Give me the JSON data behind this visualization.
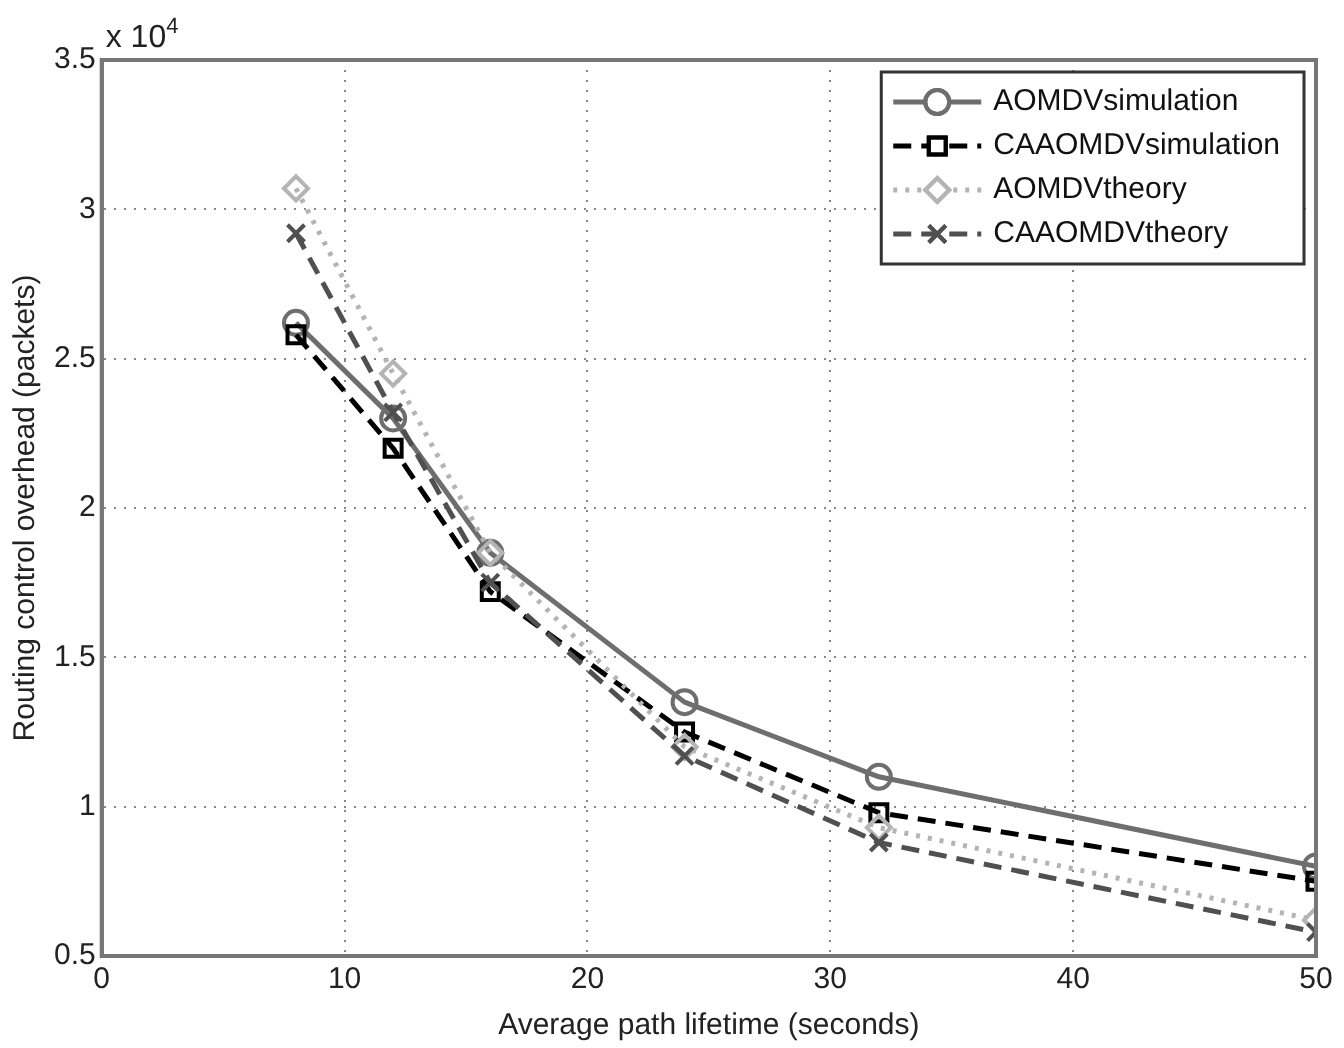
{
  "chart_data": {
    "type": "line",
    "xlabel": "Average path lifetime (seconds)",
    "ylabel": "Routing control overhead (packets)",
    "x": [
      8,
      12,
      16,
      24,
      32,
      50
    ],
    "series": [
      {
        "name": "AOMDVsimulation",
        "color": "#6e6e6e",
        "marker": "circle",
        "line_style": "solid",
        "values": [
          2.62,
          2.3,
          1.85,
          1.35,
          1.1,
          0.8
        ]
      },
      {
        "name": "CAAOMDVsimulation",
        "color": "#000000",
        "marker": "square",
        "line_style": "dashed",
        "values": [
          2.58,
          2.2,
          1.72,
          1.25,
          0.98,
          0.75
        ]
      },
      {
        "name": "AOMDVtheory",
        "color": "#b4b4b4",
        "marker": "diamond",
        "line_style": "dotted",
        "values": [
          3.07,
          2.45,
          1.85,
          1.2,
          0.93,
          0.62
        ]
      },
      {
        "name": "CAAOMDVtheory",
        "color": "#505050",
        "marker": "cross",
        "line_style": "dashed",
        "values": [
          2.92,
          2.32,
          1.75,
          1.17,
          0.88,
          0.58
        ]
      }
    ],
    "xlim": [
      0,
      50
    ],
    "xticks": [
      0,
      10,
      20,
      30,
      40,
      50
    ],
    "ylim": [
      0.5,
      3.5
    ],
    "yticks": [
      0.5,
      1,
      1.5,
      2,
      2.5,
      3,
      3.5
    ],
    "annotations": [
      "x 10$^{4}$"
    ],
    "grid": true,
    "legend": "top right"
  }
}
